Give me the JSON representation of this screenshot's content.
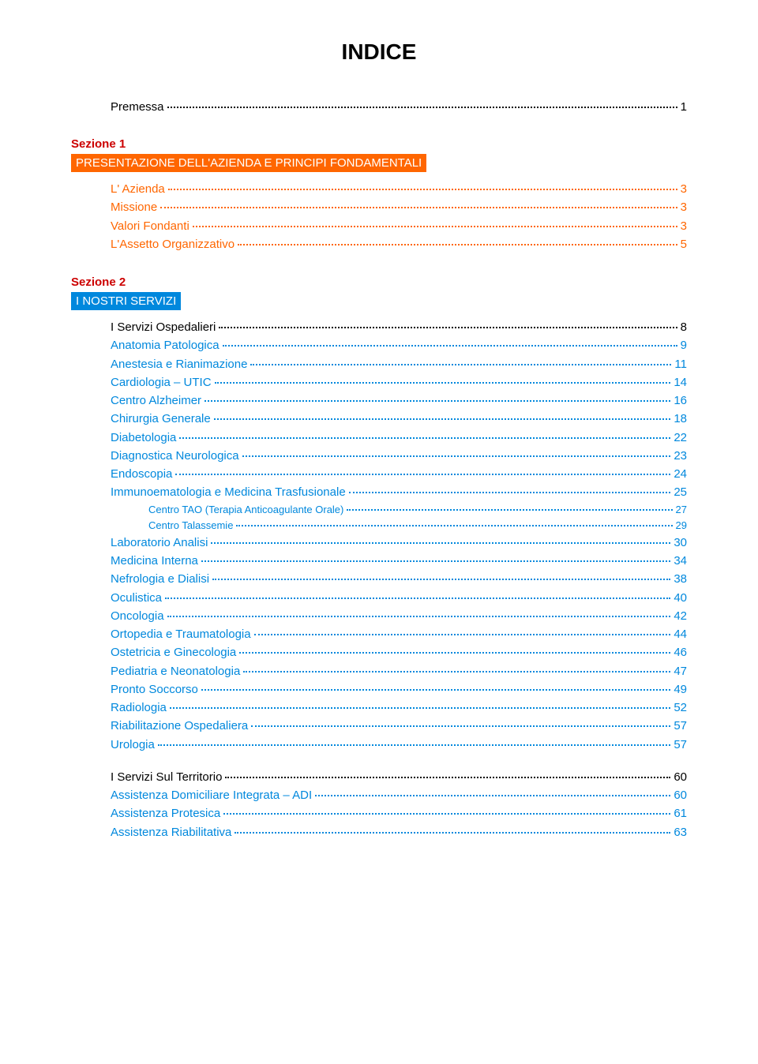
{
  "title": "INDICE",
  "premessa": {
    "label": "Premessa",
    "page": "1"
  },
  "section1": {
    "label": "Sezione 1",
    "bar": "PRESENTAZIONE DELL'AZIENDA E PRINCIPI FONDAMENTALI",
    "bar_bg": "#ff6600",
    "label_color": "#cc0000",
    "items": [
      {
        "label": "L' Azienda",
        "page": "3",
        "color": "#ff6600"
      },
      {
        "label": "Missione",
        "page": "3",
        "color": "#ff6600"
      },
      {
        "label": "Valori Fondanti",
        "page": "3",
        "color": "#ff6600"
      },
      {
        "label": "L'Assetto Organizzativo",
        "page": "5",
        "color": "#ff6600"
      }
    ]
  },
  "section2": {
    "label": "Sezione 2",
    "bar": "I NOSTRI SERVIZI",
    "bar_bg": "#0088dd",
    "label_color": "#cc0000",
    "heading": {
      "label": "I Servizi Ospedalieri",
      "page": "8",
      "color": "#000000"
    },
    "items": [
      {
        "label": "Anatomia Patologica",
        "page": "9",
        "color": "#0088dd",
        "indent": 1
      },
      {
        "label": "Anestesia e Rianimazione",
        "page": "11",
        "color": "#0088dd",
        "indent": 1
      },
      {
        "label": "Cardiologia – UTIC",
        "page": "14",
        "color": "#0088dd",
        "indent": 1
      },
      {
        "label": "Centro Alzheimer",
        "page": "16",
        "color": "#0088dd",
        "indent": 1
      },
      {
        "label": "Chirurgia Generale",
        "page": "18",
        "color": "#0088dd",
        "indent": 1
      },
      {
        "label": "Diabetologia",
        "page": "22",
        "color": "#0088dd",
        "indent": 1
      },
      {
        "label": "Diagnostica Neurologica",
        "page": "23",
        "color": "#0088dd",
        "indent": 1
      },
      {
        "label": "Endoscopia",
        "page": "24",
        "color": "#0088dd",
        "indent": 1
      },
      {
        "label": "Immunoematologia e Medicina Trasfusionale",
        "page": "25",
        "color": "#0088dd",
        "indent": 1
      },
      {
        "label": "Centro TAO (Terapia Anticoagulante Orale)",
        "page": "27",
        "color": "#0088dd",
        "indent": 2
      },
      {
        "label": "Centro Talassemie",
        "page": "29",
        "color": "#0088dd",
        "indent": 2
      },
      {
        "label": "Laboratorio Analisi",
        "page": "30",
        "color": "#0088dd",
        "indent": 1
      },
      {
        "label": "Medicina Interna",
        "page": "34",
        "color": "#0088dd",
        "indent": 1
      },
      {
        "label": "Nefrologia e Dialisi",
        "page": "38",
        "color": "#0088dd",
        "indent": 1
      },
      {
        "label": "Oculistica",
        "page": "40",
        "color": "#0088dd",
        "indent": 1
      },
      {
        "label": "Oncologia",
        "page": "42",
        "color": "#0088dd",
        "indent": 1
      },
      {
        "label": "Ortopedia e Traumatologia",
        "page": "44",
        "color": "#0088dd",
        "indent": 1
      },
      {
        "label": "Ostetricia e Ginecologia",
        "page": "46",
        "color": "#0088dd",
        "indent": 1
      },
      {
        "label": "Pediatria e Neonatologia",
        "page": "47",
        "color": "#0088dd",
        "indent": 1
      },
      {
        "label": "Pronto Soccorso",
        "page": "49",
        "color": "#0088dd",
        "indent": 1
      },
      {
        "label": "Radiologia",
        "page": "52",
        "color": "#0088dd",
        "indent": 1
      },
      {
        "label": "Riabilitazione Ospedaliera",
        "page": "57",
        "color": "#0088dd",
        "indent": 1
      },
      {
        "label": "Urologia",
        "page": "57",
        "color": "#0088dd",
        "indent": 1
      }
    ],
    "territorio_heading": {
      "label": "I Servizi Sul Territorio",
      "page": "60",
      "color": "#000000"
    },
    "territorio_items": [
      {
        "label": "Assistenza Domiciliare Integrata – ADI",
        "page": "60",
        "color": "#0088dd",
        "indent": 1
      },
      {
        "label": "Assistenza Protesica",
        "page": "61",
        "color": "#0088dd",
        "indent": 1
      },
      {
        "label": "Assistenza Riabilitativa",
        "page": "63",
        "color": "#0088dd",
        "indent": 1
      }
    ]
  }
}
